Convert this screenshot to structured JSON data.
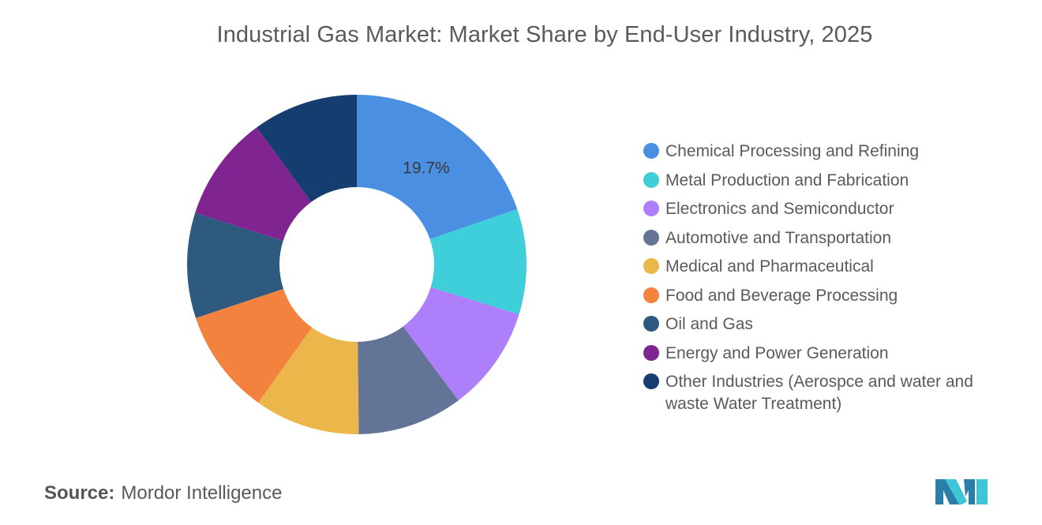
{
  "title": "Industrial Gas Market: Market Share by End-User Industry, 2025",
  "source": {
    "label": "Source:",
    "value": "Mordor Intelligence"
  },
  "logo": {
    "name": "mordor-intelligence-logo",
    "colors": [
      "#2a7fa8",
      "#3ec6d8"
    ]
  },
  "chart_data": {
    "type": "pie",
    "variant": "donut",
    "title": "Industrial Gas Market: Market Share by End-User Industry, 2025",
    "legend_position": "right",
    "start_angle_deg": 90,
    "direction": "clockwise",
    "series": [
      {
        "name": "Chemical Processing and Refining",
        "value": 19.7,
        "color": "#4a8fe2",
        "label": "19.7%"
      },
      {
        "name": "Metal Production and Fabrication",
        "value": 10.03,
        "color": "#3ecfdb"
      },
      {
        "name": "Electronics and Semiconductor",
        "value": 10.03,
        "color": "#ae7ffb"
      },
      {
        "name": "Automotive and Transportation",
        "value": 10.03,
        "color": "#637496"
      },
      {
        "name": "Medical and Pharmaceutical",
        "value": 10.03,
        "color": "#ecb74a"
      },
      {
        "name": "Food and Beverage Processing",
        "value": 10.03,
        "color": "#f4823f"
      },
      {
        "name": "Oil and Gas",
        "value": 10.03,
        "color": "#2d5a7e"
      },
      {
        "name": "Energy and Power Generation",
        "value": 10.03,
        "color": "#7f2491"
      },
      {
        "name": "Other Industries (Aerospce and water and waste Water Treatment)",
        "value": 10.03,
        "color": "#153d70"
      }
    ]
  }
}
